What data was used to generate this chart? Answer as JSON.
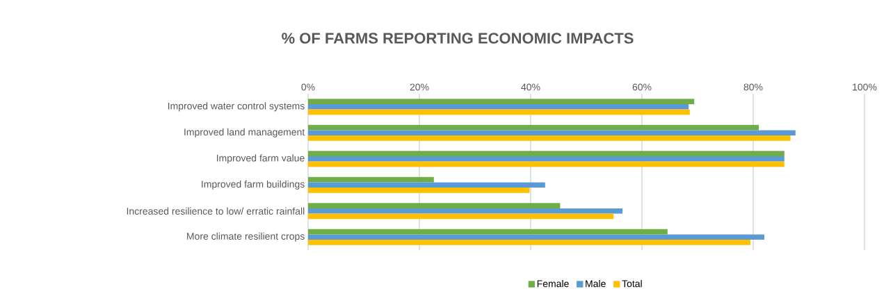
{
  "chart_data": {
    "type": "bar",
    "orientation": "horizontal",
    "title": "% OF FARMS REPORTING ECONOMIC IMPACTS",
    "categories": [
      "Improved water control systems",
      "Improved land management",
      "Improved farm value",
      "Improved  farm buildings",
      "Increased resilience to low/ erratic rainfall",
      "More climate resilient crops"
    ],
    "series": [
      {
        "name": "Female",
        "color": "#70ad47",
        "values": [
          69.4,
          81.0,
          85.6,
          22.6,
          45.3,
          64.6
        ]
      },
      {
        "name": "Male",
        "color": "#5b9bd5",
        "values": [
          68.4,
          87.6,
          85.6,
          42.6,
          56.5,
          82.0
        ]
      },
      {
        "name": "Total",
        "color": "#ffc000",
        "values": [
          68.6,
          86.7,
          85.6,
          39.8,
          54.9,
          79.5
        ]
      }
    ],
    "xlim": [
      0,
      100
    ],
    "xticks": [
      {
        "value": 0,
        "label": "0%"
      },
      {
        "value": 20,
        "label": "20%"
      },
      {
        "value": 40,
        "label": "40%"
      },
      {
        "value": 60,
        "label": "60%"
      },
      {
        "value": 80,
        "label": "80%"
      },
      {
        "value": 100,
        "label": "100%"
      }
    ],
    "grid": "x",
    "legend": "bottom"
  }
}
